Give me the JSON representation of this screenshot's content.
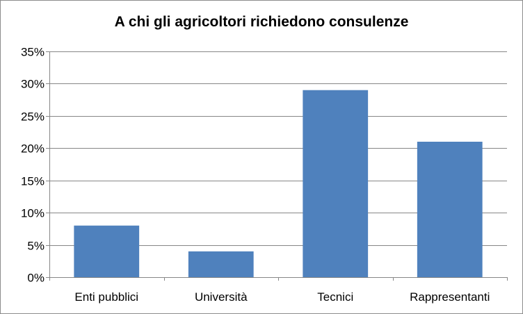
{
  "chart_data": {
    "type": "bar",
    "title": "A chi gli agricoltori richiedono consulenze",
    "categories": [
      "Enti pubblici",
      "Università",
      "Tecnici",
      "Rappresentanti"
    ],
    "values": [
      8,
      4,
      29,
      21
    ],
    "value_unit": "%",
    "ylim": [
      0,
      35
    ],
    "yticks": [
      0,
      5,
      10,
      15,
      20,
      25,
      30,
      35
    ],
    "ytick_labels": [
      "0%",
      "5%",
      "10%",
      "15%",
      "20%",
      "25%",
      "30%",
      "35%"
    ],
    "grid": true,
    "legend": "none",
    "colors": {
      "bar": "#4f81bd",
      "grid": "#868686",
      "axis": "#868686"
    }
  }
}
